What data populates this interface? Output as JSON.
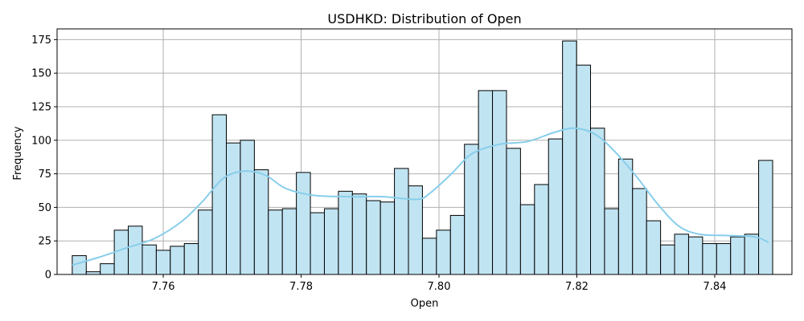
{
  "chart_data": {
    "type": "bar",
    "title": "USDHKD: Distribution of Open",
    "xlabel": "Open",
    "ylabel": "Frequency",
    "xlim": [
      7.7446,
      7.8512
    ],
    "ylim": [
      0,
      183
    ],
    "xticks": [
      7.76,
      7.78,
      7.8,
      7.82,
      7.84
    ],
    "yticks": [
      0,
      25,
      50,
      75,
      100,
      125,
      150,
      175
    ],
    "grid": true,
    "bins": {
      "start": 7.7468,
      "width": 0.002032,
      "counts": [
        14,
        2,
        8,
        33,
        36,
        22,
        18,
        21,
        23,
        48,
        119,
        98,
        100,
        78,
        48,
        49,
        76,
        46,
        49,
        62,
        60,
        55,
        54,
        79,
        66,
        27,
        33,
        44,
        97,
        137,
        137,
        94,
        52,
        67,
        101,
        174,
        156,
        109,
        49,
        86,
        64,
        40,
        22,
        30,
        28,
        23,
        23,
        28,
        30,
        85
      ]
    },
    "kde": {
      "x": [
        7.7468,
        7.7508,
        7.7548,
        7.7588,
        7.7628,
        7.7658,
        7.7688,
        7.7718,
        7.7748,
        7.7778,
        7.7818,
        7.7868,
        7.7918,
        7.7968,
        7.7988,
        7.8018,
        7.8048,
        7.8088,
        7.8128,
        7.8168,
        7.8198,
        7.8228,
        7.8258,
        7.8288,
        7.8318,
        7.8348,
        7.8378,
        7.8418,
        7.8458,
        7.8478
      ],
      "y": [
        7,
        13,
        20,
        27,
        40,
        55,
        72,
        77,
        74,
        64,
        59,
        58,
        58,
        56,
        61,
        75,
        90,
        97,
        99,
        106,
        109,
        104,
        90,
        72,
        52,
        36,
        30,
        29,
        28,
        24
      ]
    },
    "colors": {
      "bar_fill": "#c1e4f2",
      "bar_edge": "#000000",
      "kde_line": "#87ceeb",
      "grid": "#b0b0b0"
    }
  }
}
